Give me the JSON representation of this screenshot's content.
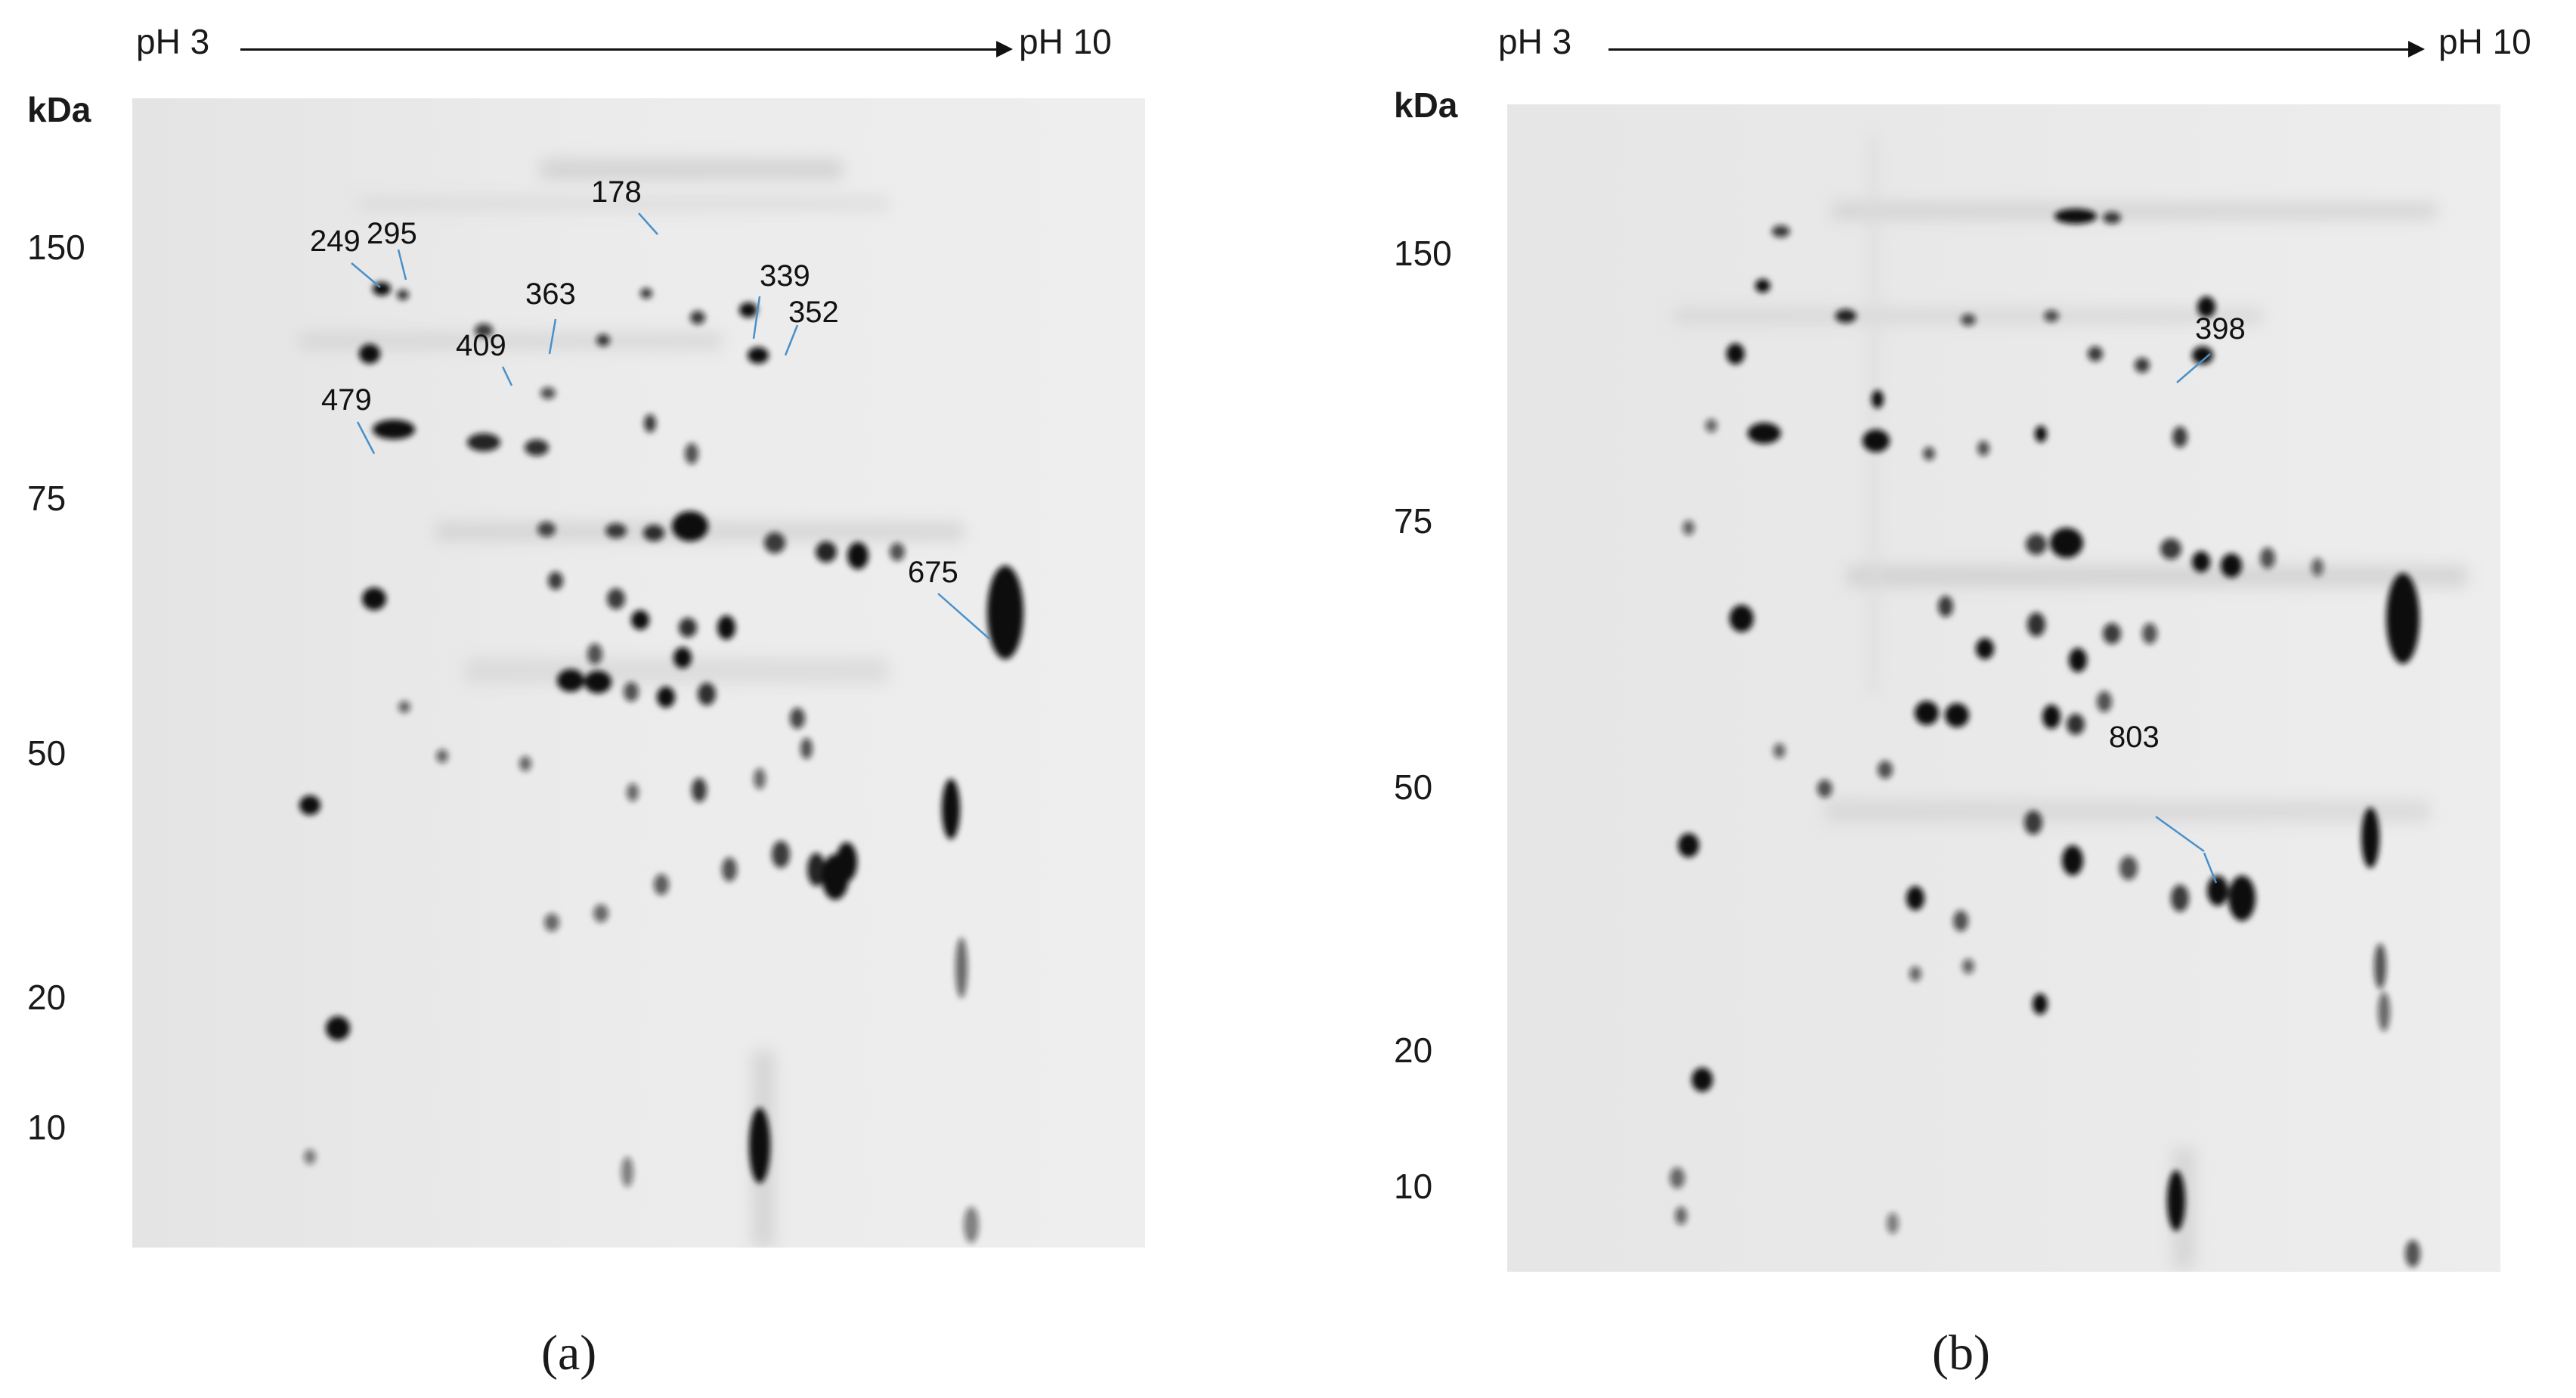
{
  "panels": [
    {
      "id": "a",
      "ph_start": "pH 3",
      "ph_end": "pH 10",
      "unit": "kDa",
      "mw_ticks": [
        "150",
        "75",
        "50",
        "20",
        "10"
      ],
      "spot_labels": [
        "178",
        "249",
        "295",
        "363",
        "339",
        "352",
        "409",
        "479",
        "675"
      ],
      "caption": "(a)"
    },
    {
      "id": "b",
      "ph_start": "pH 3",
      "ph_end": "pH 10",
      "unit": "kDa",
      "mw_ticks": [
        "150",
        "75",
        "50",
        "20",
        "10"
      ],
      "spot_labels": [
        "398",
        "803"
      ],
      "caption": "(b)"
    }
  ],
  "colors": {
    "gel_background": "#ededed",
    "spot": "#111111",
    "annotation_line": "#4a90c8"
  }
}
